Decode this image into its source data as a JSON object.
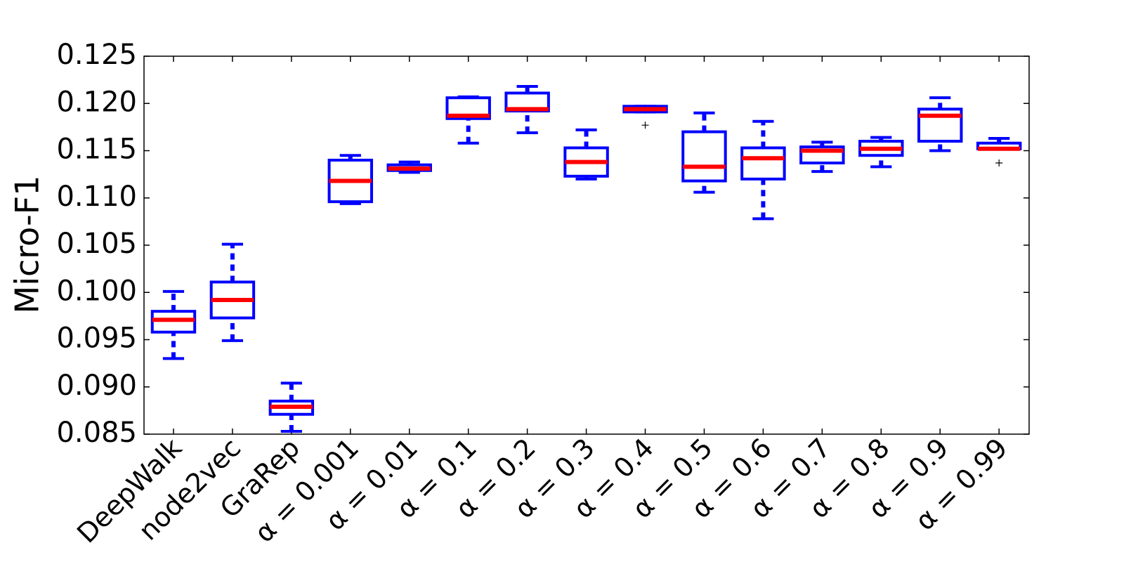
{
  "chart_data": {
    "type": "box",
    "ylabel": "Micro-F1",
    "categories": [
      "DeepWalk",
      "node2vec",
      "GraRep",
      "α = 0.001",
      "α = 0.01",
      "α = 0.1",
      "α = 0.2",
      "α = 0.3",
      "α = 0.4",
      "α = 0.5",
      "α = 0.6",
      "α = 0.7",
      "α = 0.8",
      "α = 0.9",
      "α = 0.99"
    ],
    "boxes": [
      {
        "whislo": 0.093,
        "q1": 0.0958,
        "med": 0.0971,
        "q3": 0.098,
        "whishi": 0.1001,
        "fliers": []
      },
      {
        "whislo": 0.0949,
        "q1": 0.0973,
        "med": 0.0992,
        "q3": 0.1011,
        "whishi": 0.1051,
        "fliers": []
      },
      {
        "whislo": 0.0853,
        "q1": 0.0871,
        "med": 0.0879,
        "q3": 0.0885,
        "whishi": 0.0904,
        "fliers": []
      },
      {
        "whislo": 0.1094,
        "q1": 0.1096,
        "med": 0.1118,
        "q3": 0.114,
        "whishi": 0.1145,
        "fliers": []
      },
      {
        "whislo": 0.1127,
        "q1": 0.1129,
        "med": 0.1131,
        "q3": 0.1135,
        "whishi": 0.1138,
        "fliers": []
      },
      {
        "whislo": 0.1158,
        "q1": 0.1184,
        "med": 0.1187,
        "q3": 0.1206,
        "whishi": 0.1207,
        "fliers": []
      },
      {
        "whislo": 0.1169,
        "q1": 0.1192,
        "med": 0.1194,
        "q3": 0.1211,
        "whishi": 0.1218,
        "fliers": []
      },
      {
        "whislo": 0.112,
        "q1": 0.1123,
        "med": 0.1138,
        "q3": 0.1153,
        "whishi": 0.1172,
        "fliers": []
      },
      {
        "whislo": 0.1191,
        "q1": 0.1191,
        "med": 0.1194,
        "q3": 0.1197,
        "whishi": 0.1197,
        "fliers": [
          0.1177
        ]
      },
      {
        "whislo": 0.1106,
        "q1": 0.1118,
        "med": 0.1133,
        "q3": 0.117,
        "whishi": 0.119,
        "fliers": []
      },
      {
        "whislo": 0.1078,
        "q1": 0.112,
        "med": 0.1142,
        "q3": 0.1153,
        "whishi": 0.1181,
        "fliers": []
      },
      {
        "whislo": 0.1128,
        "q1": 0.1137,
        "med": 0.115,
        "q3": 0.1154,
        "whishi": 0.1159,
        "fliers": []
      },
      {
        "whislo": 0.1133,
        "q1": 0.1145,
        "med": 0.1152,
        "q3": 0.116,
        "whishi": 0.1164,
        "fliers": []
      },
      {
        "whislo": 0.115,
        "q1": 0.116,
        "med": 0.1187,
        "q3": 0.1194,
        "whishi": 0.1206,
        "fliers": []
      },
      {
        "whislo": 0.1152,
        "q1": 0.1152,
        "med": 0.1152,
        "q3": 0.1158,
        "whishi": 0.1163,
        "fliers": [
          0.1137
        ]
      }
    ],
    "box_color": "#0000ff",
    "median_color": "#ff0000",
    "ylim": [
      0.085,
      0.125
    ],
    "yticks": [
      0.085,
      {
        "value": 0.09,
        "label": "0.090"
      },
      0.095,
      {
        "value": 0.1,
        "label": "0.100"
      },
      0.105,
      {
        "value": 0.11,
        "label": "0.110"
      },
      0.115,
      {
        "value": 0.12,
        "label": "0.120"
      },
      0.125
    ]
  }
}
